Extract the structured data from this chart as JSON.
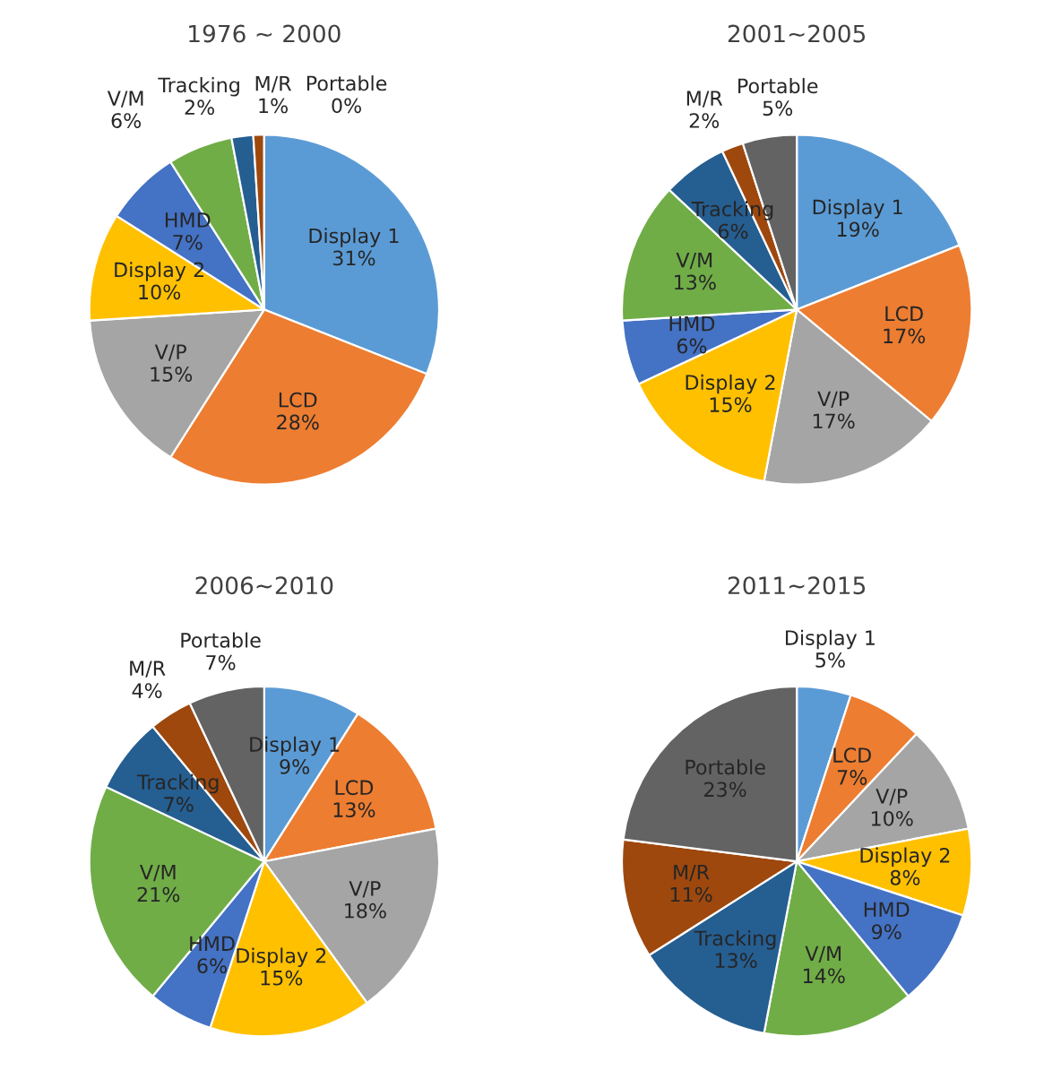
{
  "chart_data": [
    {
      "type": "pie",
      "title": "1976 ~ 2000",
      "categories": [
        "Display 1",
        "LCD",
        "V/P",
        "Display 2",
        "HMD",
        "V/M",
        "Tracking",
        "M/R",
        "Portable"
      ],
      "values": [
        31,
        28,
        15,
        10,
        7,
        6,
        2,
        1,
        0
      ],
      "value_labels": [
        "31%",
        "28%",
        "15%",
        "10%",
        "7%",
        "6%",
        "2%",
        "1%",
        "0%"
      ],
      "colors": [
        "#5b9bd5",
        "#ed7d31",
        "#a5a5a5",
        "#ffc000",
        "#4472c4",
        "#70ad47",
        "#255e91",
        "#9e480e",
        "#636363"
      ]
    },
    {
      "type": "pie",
      "title": "2001~2005",
      "categories": [
        "Display 1",
        "LCD",
        "V/P",
        "Display 2",
        "HMD",
        "V/M",
        "Tracking",
        "M/R",
        "Portable"
      ],
      "values": [
        19,
        17,
        17,
        15,
        6,
        13,
        6,
        2,
        5
      ],
      "value_labels": [
        "19%",
        "17%",
        "17%",
        "15%",
        "6%",
        "13%",
        "6%",
        "2%",
        "5%"
      ],
      "colors": [
        "#5b9bd5",
        "#ed7d31",
        "#a5a5a5",
        "#ffc000",
        "#4472c4",
        "#70ad47",
        "#255e91",
        "#9e480e",
        "#636363"
      ]
    },
    {
      "type": "pie",
      "title": "2006~2010",
      "categories": [
        "Display 1",
        "LCD",
        "V/P",
        "Display 2",
        "HMD",
        "V/M",
        "Tracking",
        "M/R",
        "Portable"
      ],
      "values": [
        9,
        13,
        18,
        15,
        6,
        21,
        7,
        4,
        7
      ],
      "value_labels": [
        "9%",
        "13%",
        "18%",
        "15%",
        "6%",
        "21%",
        "7%",
        "4%",
        "7%"
      ],
      "colors": [
        "#5b9bd5",
        "#ed7d31",
        "#a5a5a5",
        "#ffc000",
        "#4472c4",
        "#70ad47",
        "#255e91",
        "#9e480e",
        "#636363"
      ]
    },
    {
      "type": "pie",
      "title": "2011~2015",
      "categories": [
        "Display 1",
        "LCD",
        "V/P",
        "Display 2",
        "HMD",
        "V/M",
        "Tracking",
        "M/R",
        "Portable"
      ],
      "values": [
        5,
        7,
        10,
        8,
        9,
        14,
        13,
        11,
        23
      ],
      "value_labels": [
        "5%",
        "7%",
        "10%",
        "8%",
        "9%",
        "14%",
        "13%",
        "11%",
        "23%"
      ],
      "colors": [
        "#5b9bd5",
        "#ed7d31",
        "#a5a5a5",
        "#ffc000",
        "#4472c4",
        "#70ad47",
        "#255e91",
        "#9e480e",
        "#636363"
      ]
    }
  ]
}
